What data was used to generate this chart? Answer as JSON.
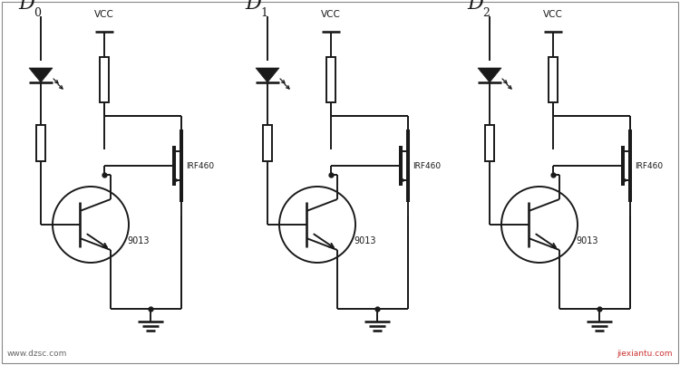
{
  "bg_color": "#ffffff",
  "line_color": "#1a1a1a",
  "circuits": [
    {
      "subscript": "0",
      "ox": 15
    },
    {
      "subscript": "1",
      "ox": 265
    },
    {
      "subscript": "2",
      "ox": 510
    }
  ],
  "vcc_label": "VCC",
  "mosfet_label": "IRF460",
  "bjt_label": "9013",
  "watermark1": "www.dzsc.com",
  "watermark2": "jiexiantu.com"
}
